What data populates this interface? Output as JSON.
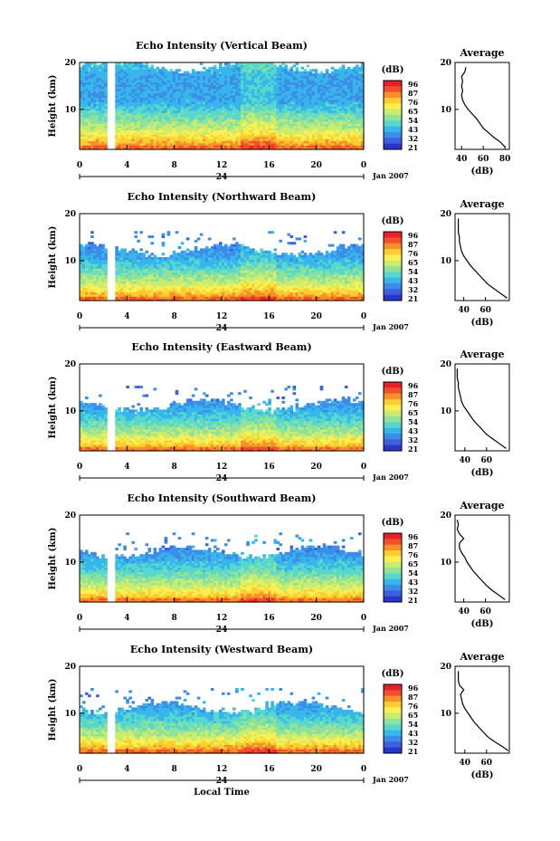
{
  "xlabel": "Local Time",
  "date_label": "Jan 2007",
  "day_label": "24",
  "colorbar": {
    "unit": "(dB)",
    "ticks": [
      "96",
      "87",
      "76",
      "65",
      "54",
      "43",
      "32",
      "21"
    ],
    "colors": [
      "#e8202a",
      "#f2502a",
      "#f8902a",
      "#fccc30",
      "#fcf050",
      "#c8ec70",
      "#8ee29a",
      "#58d8cc",
      "#36b6ea",
      "#3c8ce8",
      "#3c60e0",
      "#2a36c8"
    ]
  },
  "main_axes": {
    "ylabel": "Height (km)",
    "yticks": [
      "20",
      "10"
    ],
    "xticks": [
      "0",
      "4",
      "8",
      "12",
      "16",
      "20",
      "0"
    ],
    "xlim": [
      0,
      24
    ],
    "ylim": [
      1.5,
      20
    ],
    "data_gap_hours": [
      2.4,
      2.8
    ]
  },
  "avg_axes": {
    "title": "Average",
    "xlabel": "(dB)",
    "yticks": [
      "20",
      "10"
    ]
  },
  "panels": [
    {
      "title": "Echo Intensity (Vertical Beam)",
      "avg_xticks": [
        "40",
        "60",
        "80"
      ],
      "avg_xlim": [
        34,
        84
      ],
      "chart_data": {
        "type": "heatmap",
        "x_range": [
          0,
          24
        ],
        "y_range": [
          1.5,
          20
        ],
        "x_unit": "hour (local time)",
        "y_unit": "km",
        "value_unit": "dB",
        "top_height_km": 19,
        "profile": [
          [
            2,
            80
          ],
          [
            3,
            76
          ],
          [
            4,
            70
          ],
          [
            5,
            65
          ],
          [
            6,
            60
          ],
          [
            7,
            57
          ],
          [
            8,
            54
          ],
          [
            9,
            50
          ],
          [
            10,
            46
          ],
          [
            11,
            43
          ],
          [
            12,
            41
          ],
          [
            13,
            40
          ],
          [
            14,
            41
          ],
          [
            15,
            40
          ],
          [
            16,
            41
          ],
          [
            17,
            40
          ],
          [
            18,
            43
          ],
          [
            19,
            44
          ]
        ]
      }
    },
    {
      "title": "Echo Intensity (Northward Beam)",
      "avg_xticks": [
        "40",
        "60"
      ],
      "avg_xlim": [
        32,
        82
      ],
      "chart_data": {
        "type": "heatmap",
        "x_range": [
          0,
          24
        ],
        "y_range": [
          1.5,
          20
        ],
        "x_unit": "hour (local time)",
        "y_unit": "km",
        "value_unit": "dB",
        "top_height_km": 12,
        "profile": [
          [
            2,
            80
          ],
          [
            3,
            74
          ],
          [
            4,
            68
          ],
          [
            5,
            62
          ],
          [
            6,
            58
          ],
          [
            7,
            54
          ],
          [
            8,
            50
          ],
          [
            9,
            46
          ],
          [
            10,
            43
          ],
          [
            11,
            40
          ],
          [
            12,
            38
          ],
          [
            13,
            37
          ],
          [
            14,
            36
          ],
          [
            15,
            36
          ],
          [
            16,
            35
          ],
          [
            17,
            35
          ],
          [
            18,
            35
          ],
          [
            19,
            35
          ]
        ]
      }
    },
    {
      "title": "Echo Intensity (Eastward Beam)",
      "avg_xticks": [
        "40",
        "60"
      ],
      "avg_xlim": [
        31,
        81
      ],
      "chart_data": {
        "type": "heatmap",
        "x_range": [
          0,
          24
        ],
        "y_range": [
          1.5,
          20
        ],
        "x_unit": "hour (local time)",
        "y_unit": "km",
        "value_unit": "dB",
        "top_height_km": 11,
        "profile": [
          [
            2,
            78
          ],
          [
            3,
            72
          ],
          [
            4,
            66
          ],
          [
            5,
            60
          ],
          [
            6,
            56
          ],
          [
            7,
            52
          ],
          [
            8,
            48
          ],
          [
            9,
            45
          ],
          [
            10,
            42
          ],
          [
            11,
            39
          ],
          [
            12,
            37
          ],
          [
            13,
            36
          ],
          [
            14,
            35
          ],
          [
            15,
            34
          ],
          [
            16,
            34
          ],
          [
            17,
            33
          ],
          [
            18,
            33
          ],
          [
            19,
            33
          ]
        ]
      }
    },
    {
      "title": "Echo Intensity (Southward Beam)",
      "avg_xticks": [
        "40",
        "60"
      ],
      "avg_xlim": [
        32,
        82
      ],
      "chart_data": {
        "type": "heatmap",
        "x_range": [
          0,
          24
        ],
        "y_range": [
          1.5,
          20
        ],
        "x_unit": "hour (local time)",
        "y_unit": "km",
        "value_unit": "dB",
        "top_height_km": 12,
        "profile": [
          [
            2,
            78
          ],
          [
            3,
            72
          ],
          [
            4,
            66
          ],
          [
            5,
            61
          ],
          [
            6,
            57
          ],
          [
            7,
            53
          ],
          [
            8,
            49
          ],
          [
            9,
            46
          ],
          [
            10,
            43
          ],
          [
            11,
            41
          ],
          [
            12,
            38
          ],
          [
            13,
            36
          ],
          [
            14,
            36
          ],
          [
            15,
            40
          ],
          [
            16,
            36
          ],
          [
            17,
            34
          ],
          [
            18,
            35
          ],
          [
            19,
            34
          ]
        ]
      }
    },
    {
      "title": "Echo Intensity (Westward Beam)",
      "avg_xticks": [
        "40",
        "60"
      ],
      "avg_xlim": [
        31,
        81
      ],
      "chart_data": {
        "type": "heatmap",
        "x_range": [
          0,
          24
        ],
        "y_range": [
          1.5,
          20
        ],
        "x_unit": "hour (local time)",
        "y_unit": "km",
        "value_unit": "dB",
        "top_height_km": 11,
        "profile": [
          [
            2,
            80
          ],
          [
            3,
            74
          ],
          [
            4,
            67
          ],
          [
            5,
            61
          ],
          [
            6,
            57
          ],
          [
            7,
            53
          ],
          [
            8,
            49
          ],
          [
            9,
            46
          ],
          [
            10,
            43
          ],
          [
            11,
            40
          ],
          [
            12,
            38
          ],
          [
            13,
            37
          ],
          [
            14,
            36
          ],
          [
            15,
            39
          ],
          [
            16,
            35
          ],
          [
            17,
            34
          ],
          [
            18,
            34
          ],
          [
            19,
            34
          ]
        ]
      }
    }
  ]
}
